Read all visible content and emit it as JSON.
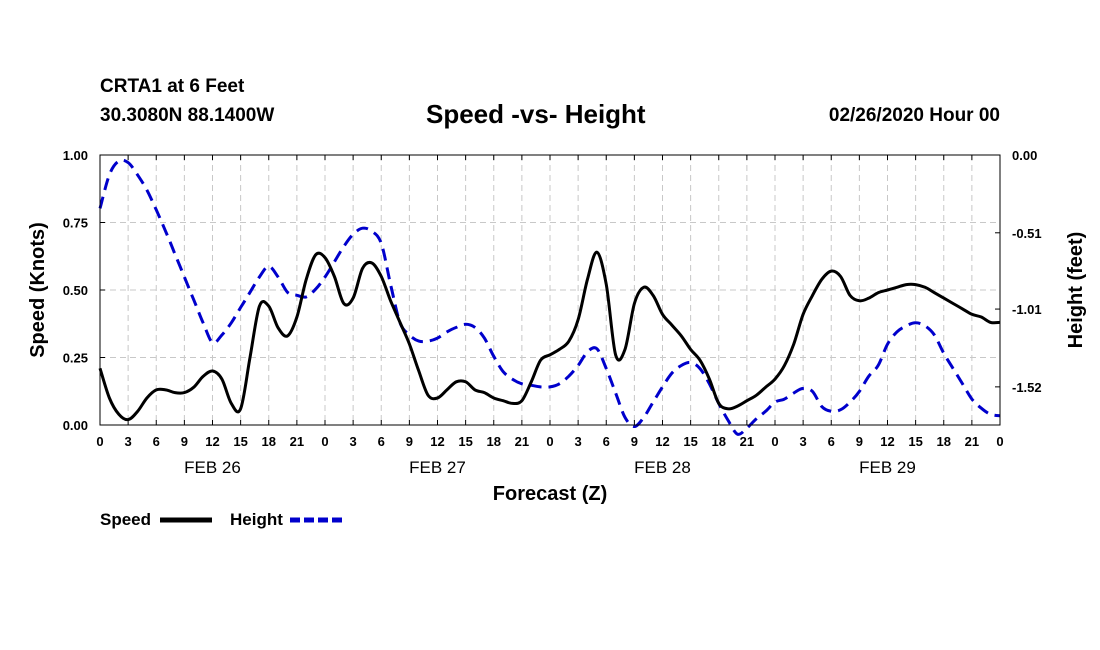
{
  "header": {
    "station": "CRTA1 at 6 Feet",
    "coords": "30.3080N 88.1400W",
    "title": "Speed -vs- Height",
    "timestamp": "02/26/2020 Hour 00"
  },
  "chart_data": {
    "type": "line",
    "title": "Speed -vs- Height",
    "xlabel": "Forecast (Z)",
    "ylabel": "Speed (Knots)",
    "y2label": "Height (feet)",
    "xlim": [
      0,
      96
    ],
    "ylim": [
      0,
      1
    ],
    "y2lim": [
      -1.77,
      0.0
    ],
    "grid": true,
    "x_tick_labels": [
      "0",
      "3",
      "6",
      "9",
      "12",
      "15",
      "18",
      "21",
      "0",
      "3",
      "6",
      "9",
      "12",
      "15",
      "18",
      "21",
      "0",
      "3",
      "6",
      "9",
      "12",
      "15",
      "18",
      "21",
      "0",
      "3",
      "6",
      "9",
      "12",
      "15",
      "18",
      "21",
      "0"
    ],
    "y_ticks": [
      "0.00",
      "0.25",
      "0.50",
      "0.75",
      "1.00"
    ],
    "y2_ticks": [
      "0.00",
      "-0.51",
      "-1.01",
      "-1.52"
    ],
    "days": [
      "FEB 26",
      "FEB 27",
      "FEB 28",
      "FEB 29"
    ],
    "legend": [
      {
        "name": "Speed",
        "color": "#000000",
        "style": "solid"
      },
      {
        "name": "Height",
        "color": "#0000cc",
        "style": "dashed"
      }
    ],
    "series": [
      {
        "name": "Speed",
        "axis": "left",
        "x": [
          0,
          1,
          2,
          3,
          4,
          5,
          6,
          7,
          8,
          9,
          10,
          11,
          12,
          13,
          14,
          15,
          16,
          17,
          18,
          19,
          20,
          21,
          22,
          23,
          24,
          25,
          26,
          27,
          28,
          29,
          30,
          31,
          32,
          33,
          34,
          35,
          36,
          37,
          38,
          39,
          40,
          41,
          42,
          43,
          44,
          45,
          46,
          47,
          48,
          49,
          50,
          51,
          52,
          53,
          54,
          55,
          56,
          57,
          58,
          59,
          60,
          61,
          62,
          63,
          64,
          65,
          66,
          67,
          68,
          69,
          70,
          71,
          72,
          73,
          74,
          75,
          76,
          77,
          78,
          79,
          80,
          81,
          82,
          83,
          84,
          85,
          86,
          87,
          88,
          89,
          90,
          91,
          92,
          93,
          94,
          95,
          96
        ],
        "values": [
          0.21,
          0.1,
          0.04,
          0.02,
          0.05,
          0.1,
          0.13,
          0.13,
          0.12,
          0.12,
          0.14,
          0.18,
          0.2,
          0.17,
          0.08,
          0.06,
          0.25,
          0.44,
          0.44,
          0.36,
          0.33,
          0.4,
          0.54,
          0.63,
          0.62,
          0.55,
          0.45,
          0.47,
          0.58,
          0.6,
          0.55,
          0.46,
          0.38,
          0.3,
          0.2,
          0.11,
          0.1,
          0.13,
          0.16,
          0.16,
          0.13,
          0.12,
          0.1,
          0.09,
          0.08,
          0.09,
          0.16,
          0.24,
          0.26,
          0.28,
          0.31,
          0.39,
          0.54,
          0.64,
          0.52,
          0.26,
          0.28,
          0.45,
          0.51,
          0.48,
          0.41,
          0.37,
          0.33,
          0.28,
          0.24,
          0.17,
          0.08,
          0.06,
          0.07,
          0.09,
          0.11,
          0.14,
          0.17,
          0.22,
          0.3,
          0.41,
          0.48,
          0.54,
          0.57,
          0.55,
          0.48,
          0.46,
          0.47,
          0.49,
          0.5,
          0.51,
          0.52,
          0.52,
          0.51,
          0.49,
          0.47,
          0.45,
          0.43,
          0.41,
          0.4,
          0.38,
          0.38
        ]
      },
      {
        "name": "Height",
        "axis": "right",
        "x": [
          0,
          1,
          2,
          3,
          4,
          5,
          6,
          7,
          8,
          9,
          10,
          11,
          12,
          13,
          14,
          15,
          16,
          17,
          18,
          19,
          20,
          21,
          22,
          23,
          24,
          25,
          26,
          27,
          28,
          29,
          30,
          31,
          32,
          33,
          34,
          35,
          36,
          37,
          38,
          39,
          40,
          41,
          42,
          43,
          44,
          45,
          46,
          47,
          48,
          49,
          50,
          51,
          52,
          53,
          54,
          55,
          56,
          57,
          58,
          59,
          60,
          61,
          62,
          63,
          64,
          65,
          66,
          67,
          68,
          69,
          70,
          71,
          72,
          73,
          74,
          75,
          76,
          77,
          78,
          79,
          80,
          81,
          82,
          83,
          84,
          85,
          86,
          87,
          88,
          89,
          90,
          91,
          92,
          93,
          94,
          95,
          96
        ],
        "values": [
          -0.35,
          -0.13,
          -0.04,
          -0.05,
          -0.13,
          -0.23,
          -0.36,
          -0.5,
          -0.65,
          -0.8,
          -0.95,
          -1.1,
          -1.23,
          -1.18,
          -1.1,
          -1.0,
          -0.9,
          -0.8,
          -0.73,
          -0.8,
          -0.9,
          -0.92,
          -0.93,
          -0.88,
          -0.8,
          -0.7,
          -0.6,
          -0.52,
          -0.48,
          -0.5,
          -0.58,
          -0.85,
          -1.1,
          -1.18,
          -1.22,
          -1.22,
          -1.2,
          -1.16,
          -1.13,
          -1.11,
          -1.13,
          -1.2,
          -1.32,
          -1.42,
          -1.47,
          -1.5,
          -1.51,
          -1.52,
          -1.52,
          -1.5,
          -1.45,
          -1.38,
          -1.29,
          -1.27,
          -1.4,
          -1.56,
          -1.72,
          -1.78,
          -1.72,
          -1.62,
          -1.52,
          -1.43,
          -1.38,
          -1.36,
          -1.4,
          -1.5,
          -1.63,
          -1.74,
          -1.83,
          -1.79,
          -1.73,
          -1.68,
          -1.62,
          -1.6,
          -1.56,
          -1.53,
          -1.55,
          -1.65,
          -1.68,
          -1.67,
          -1.62,
          -1.55,
          -1.45,
          -1.38,
          -1.24,
          -1.16,
          -1.12,
          -1.1,
          -1.12,
          -1.18,
          -1.3,
          -1.4,
          -1.5,
          -1.6,
          -1.66,
          -1.7,
          -1.71
        ]
      }
    ]
  }
}
